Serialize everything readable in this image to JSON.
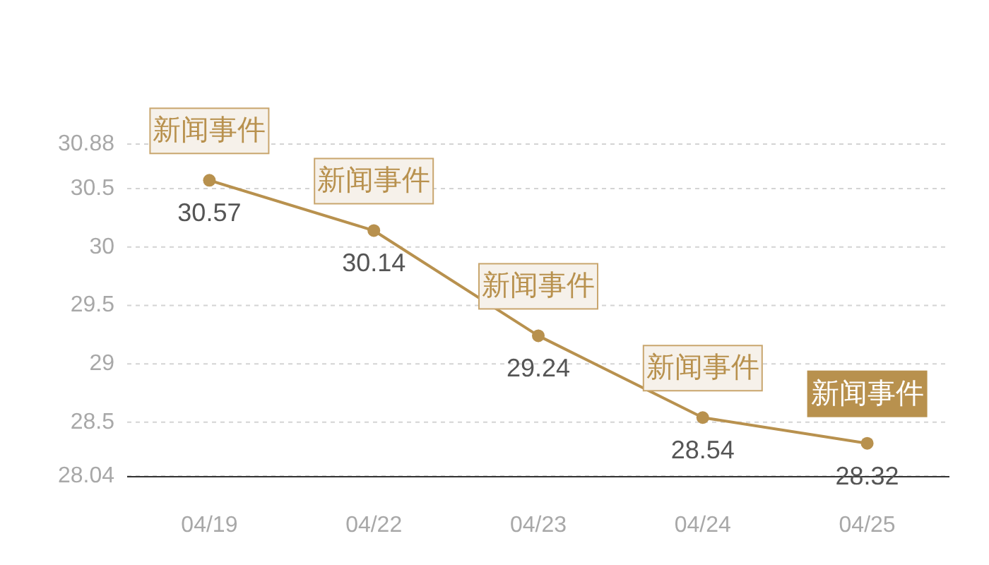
{
  "chart_data": {
    "type": "line",
    "categories": [
      "04/19",
      "04/22",
      "04/23",
      "04/24",
      "04/25"
    ],
    "series": [
      {
        "color": "#b8914e",
        "values": [
          30.57,
          30.14,
          29.24,
          28.54,
          28.32
        ]
      }
    ],
    "ylim": [
      28.04,
      30.88
    ],
    "yticks": [
      28.04,
      28.5,
      29,
      29.5,
      30,
      30.5,
      30.88
    ],
    "grid": "y",
    "marker": "circle",
    "line_style": "solid",
    "data_labels": true,
    "annotations": [
      {
        "text": "新闻事件",
        "x": "04/19",
        "y": 30.57
      },
      {
        "text": "新闻事件",
        "x": "04/22",
        "y": 30.14
      },
      {
        "text": "新闻事件",
        "x": "04/23",
        "y": 29.24
      },
      {
        "text": "新闻事件",
        "x": "04/24",
        "y": 28.54
      },
      {
        "text": "新闻事件",
        "x": "04/25",
        "y": 28.32
      }
    ]
  }
}
